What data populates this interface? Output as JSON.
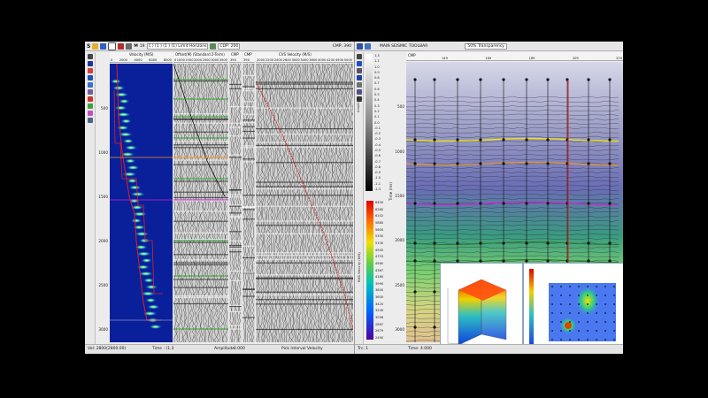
{
  "left": {
    "toolbar": {
      "items": [
        "S",
        "M",
        "19",
        "1 ) (1 ) (1 ) (1) Limit Horizons",
        "CDP: 200",
        "CMP: 390"
      ],
      "icons": [
        "save-icon",
        "open-icon",
        "zoom-icon",
        "pick-icon",
        "grid-icon",
        "settings-icon"
      ]
    },
    "tools": [
      "pointer-icon",
      "vi-icon",
      "zoom-in-icon",
      "zoom-out-icon",
      "pan-icon",
      "pick-icon",
      "curve-icon",
      "eraser-icon",
      "color-icon",
      "layers-icon"
    ],
    "velocity_header": {
      "title": "Velocity (M/S)",
      "ticks": [
        "0",
        "2000",
        "4000",
        "6000",
        "8000"
      ]
    },
    "offset_header": {
      "title": "Offset(M) (Standard 2-Term)",
      "ticks": [
        "0",
        "1000",
        "1500",
        "2000",
        "2500",
        "3000",
        "3500"
      ]
    },
    "cmp_headers": [
      {
        "title": "CMP",
        "ticks": [
          "390"
        ]
      },
      {
        "title": "CMP",
        "ticks": [
          "390"
        ]
      }
    ],
    "cvs_header": {
      "title": "CVS Velocity (M/S)",
      "ticks": [
        "2000",
        "2200",
        "2400",
        "2600",
        "3000",
        "3400",
        "3800",
        "4000",
        "4200",
        "4500",
        "5000"
      ]
    },
    "time_axis": {
      "title": "TIME ms",
      "ticks": [
        "500",
        "1000",
        "1500",
        "2000",
        "2500",
        "3000"
      ]
    },
    "status": {
      "left": "Vel: 2800(2800.00)",
      "time": "Time : (1.3",
      "amplitude": "Amplitude",
      "amp_value": "0.000",
      "pick": "Pick Interval Velocity"
    }
  },
  "right": {
    "toolbar": {
      "title": "MAIN SEISMIC TOOLBAR",
      "transparency": "50% Transparency"
    },
    "tools": [
      "select-icon",
      "zoom-icon",
      "pan-icon",
      "pick-icon",
      "measure-icon",
      "ruler-icon",
      "info-icon"
    ],
    "amp_colorbar": {
      "ticks": [
        "1.3",
        "1.1",
        "1.0",
        "0.9",
        "0.8",
        "0.7",
        "0.6",
        "0.5",
        "0.4",
        "0.3",
        "0.2",
        "0.1",
        "0.0",
        "-0.1",
        "-0.2",
        "-0.3",
        "-0.4",
        "-0.5",
        "-0.6",
        "-0.7",
        "-0.8",
        "-0.9",
        "-1.0",
        "-1.1",
        "-1.3"
      ],
      "label": "Amplitude"
    },
    "vel_colorbar": {
      "ticks": [
        "6450",
        "6280",
        "6102",
        "5880",
        "5600",
        "5330",
        "5130",
        "4945",
        "4753",
        "4560",
        "4367",
        "4180",
        "3990",
        "3800",
        "3600",
        "3420",
        "3240",
        "3056",
        "2867",
        "2679",
        "2490"
      ],
      "label": "RMS Velocity (M/S)"
    },
    "section_header": {
      "cmp": "CMP",
      "ticks": [
        "149",
        "169",
        "189",
        "209",
        "229"
      ]
    },
    "time_axis": {
      "ticks": [
        "500",
        "1000",
        "1500",
        "2000",
        "2500",
        "3000"
      ],
      "title": "Time (ms)"
    },
    "status": {
      "trc": "Trc: 1",
      "time": "Time: 4.000"
    }
  },
  "colors": {
    "background": "#000000",
    "panel": "#ececec",
    "velocity_fill": "#0a1f9a",
    "horizon_yellow": "#f2e600",
    "horizon_orange": "#f09a20",
    "horizon_magenta": "#d020d0",
    "horizon_green": "#2aa02a",
    "pick_red": "#e02020"
  }
}
